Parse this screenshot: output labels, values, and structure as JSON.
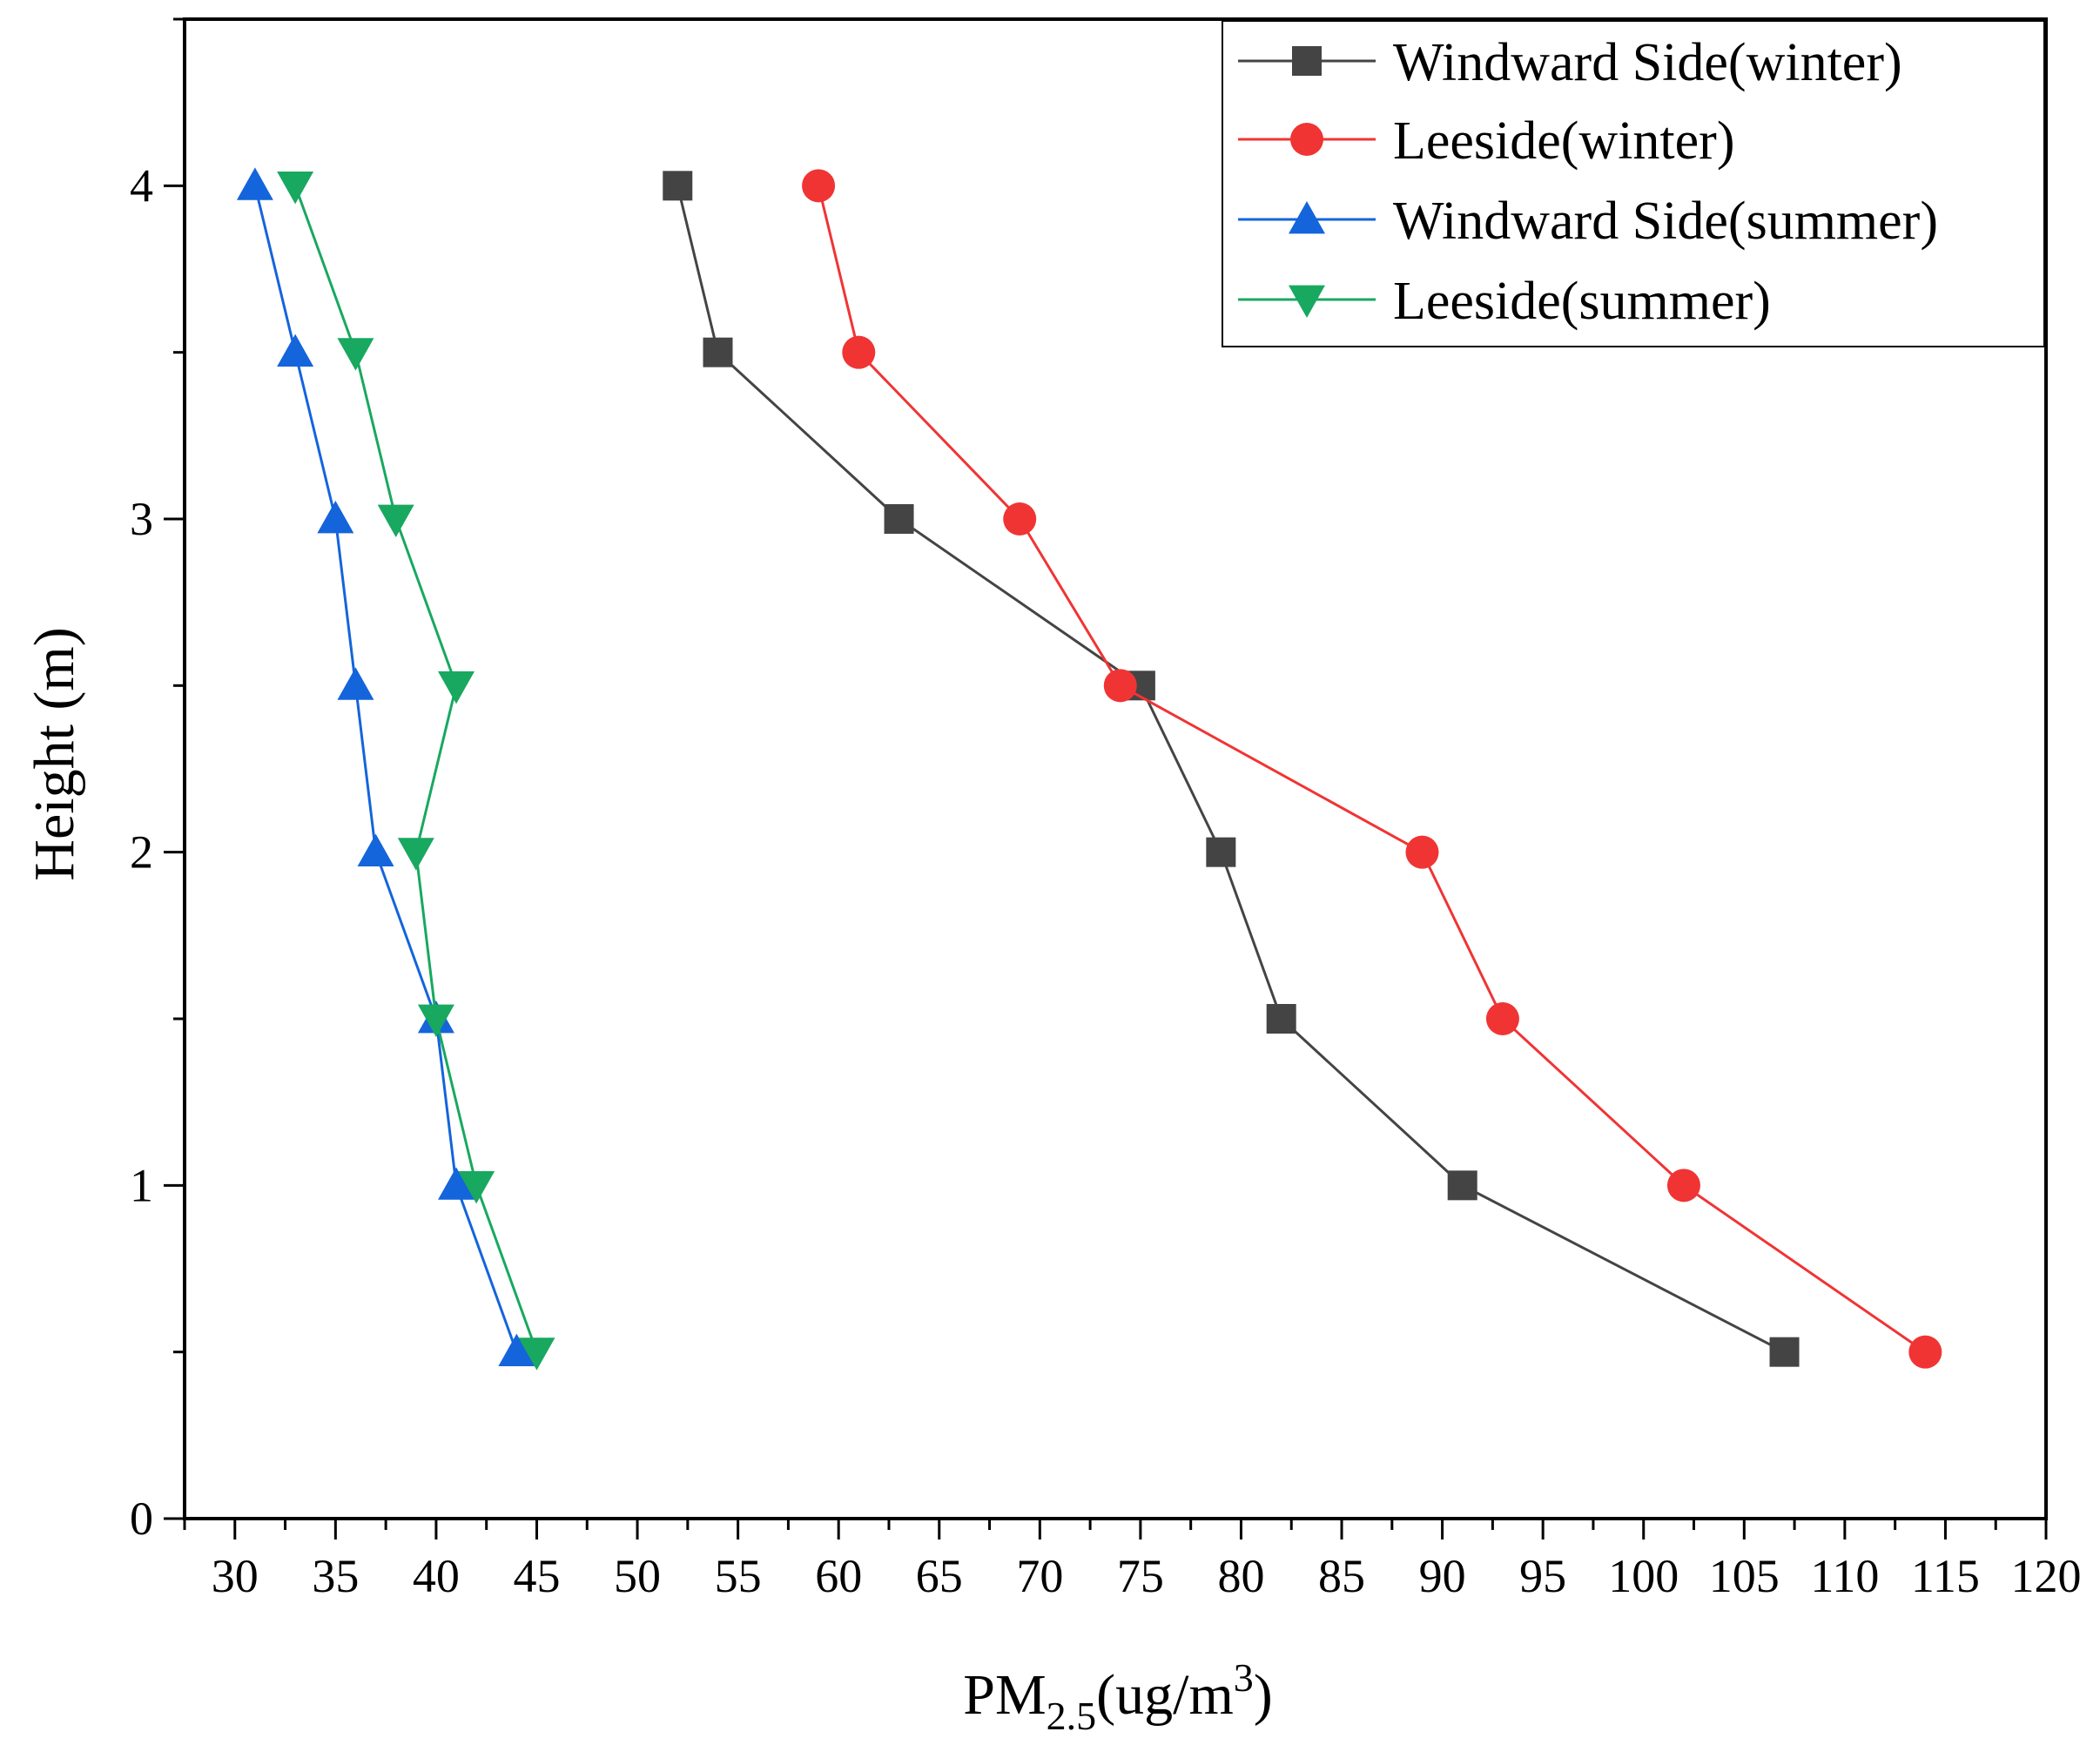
{
  "chart_data": {
    "type": "line",
    "title": "",
    "xlabel": {
      "prefix": "PM",
      "subscript": "2.5",
      "unit_open": "(ug/m",
      "superscript": "3",
      "unit_close": ")"
    },
    "ylabel": "Height (m)",
    "xlim": [
      27.5,
      120
    ],
    "ylim": [
      0,
      4.5
    ],
    "xticks": [
      30,
      35,
      40,
      45,
      50,
      55,
      60,
      65,
      70,
      75,
      80,
      85,
      90,
      95,
      100,
      105,
      110,
      115,
      120
    ],
    "xtick_labels": [
      "30",
      "35",
      "40",
      "45",
      "50",
      "55",
      "60",
      "65",
      "70",
      "75",
      "80",
      "85",
      "90",
      "95",
      "100",
      "105",
      "110",
      "115",
      "120"
    ],
    "yticks": [
      0,
      1,
      2,
      3,
      4
    ],
    "ytick_labels": [
      "0",
      "1",
      "2",
      "3",
      "4"
    ],
    "grid": false,
    "legend_position": "top-right",
    "series": [
      {
        "name": "Windward Side(winter)",
        "color": "#444444",
        "marker": "square",
        "points": [
          [
            52,
            4
          ],
          [
            54,
            3.5
          ],
          [
            63,
            3
          ],
          [
            75,
            2.5
          ],
          [
            79,
            2
          ],
          [
            82,
            1.5
          ],
          [
            91,
            1
          ],
          [
            107,
            0.5
          ]
        ]
      },
      {
        "name": "Leeside(winter)",
        "color": "#f03434",
        "marker": "circle",
        "points": [
          [
            59,
            4
          ],
          [
            61,
            3.5
          ],
          [
            69,
            3
          ],
          [
            74,
            2.5
          ],
          [
            89,
            2
          ],
          [
            93,
            1.5
          ],
          [
            102,
            1
          ],
          [
            114,
            0.5
          ]
        ]
      },
      {
        "name": "Windward Side(summer)",
        "color": "#1464dc",
        "marker": "triangle-up",
        "points": [
          [
            31,
            4
          ],
          [
            33,
            3.5
          ],
          [
            35,
            3
          ],
          [
            36,
            2.5
          ],
          [
            37,
            2
          ],
          [
            40,
            1.5
          ],
          [
            41,
            1
          ],
          [
            44,
            0.5
          ]
        ]
      },
      {
        "name": "Leeside(summer)",
        "color": "#18a860",
        "marker": "triangle-down",
        "points": [
          [
            33,
            4
          ],
          [
            36,
            3.5
          ],
          [
            38,
            3
          ],
          [
            41,
            2.5
          ],
          [
            39,
            2
          ],
          [
            40,
            1.5
          ],
          [
            42,
            1
          ],
          [
            45,
            0.5
          ]
        ]
      }
    ]
  }
}
